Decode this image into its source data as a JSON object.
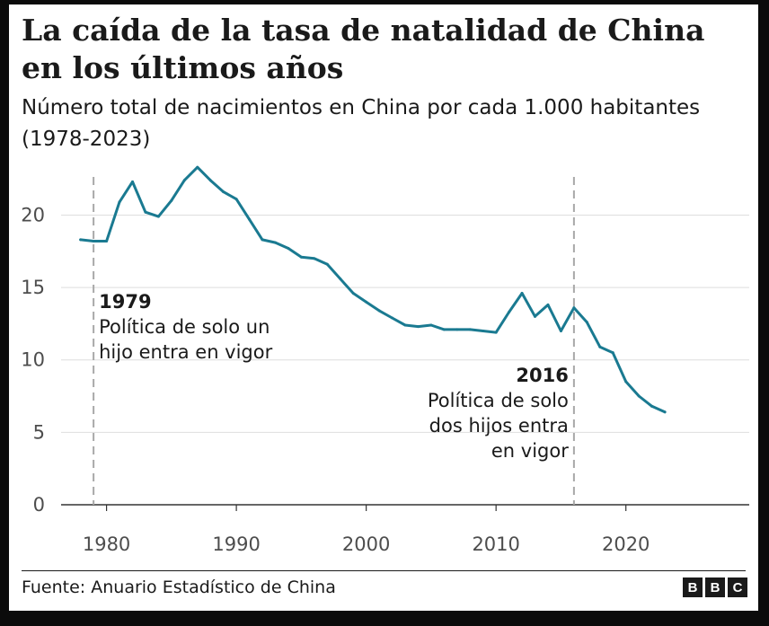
{
  "chart_data": {
    "type": "line",
    "title": "La caída de la tasa de natalidad de China en los últimos años",
    "subtitle": "Número total de nacimientos en China por cada 1.000 habitantes (1978-2023)",
    "xlabel": "",
    "ylabel": "",
    "xlim": [
      1976.5,
      2029.5
    ],
    "ylim": [
      0,
      23.5
    ],
    "xticks": [
      1980,
      1990,
      2000,
      2010,
      2020
    ],
    "yticks": [
      0,
      5,
      10,
      15,
      20
    ],
    "grid": true,
    "series": [
      {
        "name": "Tasa de natalidad",
        "color": "#1a7a91",
        "x": [
          1978,
          1979,
          1980,
          1981,
          1982,
          1983,
          1984,
          1985,
          1986,
          1987,
          1988,
          1989,
          1990,
          1991,
          1992,
          1993,
          1994,
          1995,
          1996,
          1997,
          1998,
          1999,
          2000,
          2001,
          2002,
          2003,
          2004,
          2005,
          2006,
          2007,
          2008,
          2009,
          2010,
          2011,
          2012,
          2013,
          2014,
          2015,
          2016,
          2017,
          2018,
          2019,
          2020,
          2021,
          2022,
          2023
        ],
        "values": [
          18.3,
          18.2,
          18.2,
          20.9,
          22.3,
          20.2,
          19.9,
          21.0,
          22.4,
          23.3,
          22.4,
          21.6,
          21.1,
          19.7,
          18.3,
          18.1,
          17.7,
          17.1,
          17.0,
          16.6,
          15.6,
          14.6,
          14.0,
          13.4,
          12.9,
          12.4,
          12.3,
          12.4,
          12.1,
          12.1,
          12.1,
          12.0,
          11.9,
          13.3,
          14.6,
          13.0,
          13.8,
          12.0,
          13.6,
          12.6,
          10.9,
          10.5,
          8.5,
          7.5,
          6.8,
          6.4
        ]
      }
    ],
    "annotations": [
      {
        "x": 1979,
        "year": "1979",
        "lines": [
          "Política de solo un",
          "hijo entra en vigor"
        ],
        "align": "left"
      },
      {
        "x": 2016,
        "year": "2016",
        "lines": [
          "Política de solo",
          "dos hijos entra",
          "en vigor"
        ],
        "align": "right"
      }
    ],
    "colors": {
      "line": "#1a7a91",
      "grid": "#dedede",
      "ref_line": "#a8a8a8"
    }
  },
  "footer": {
    "source": "Fuente: Anuario Estadístico de China",
    "logo_letters": [
      "B",
      "B",
      "C"
    ]
  }
}
